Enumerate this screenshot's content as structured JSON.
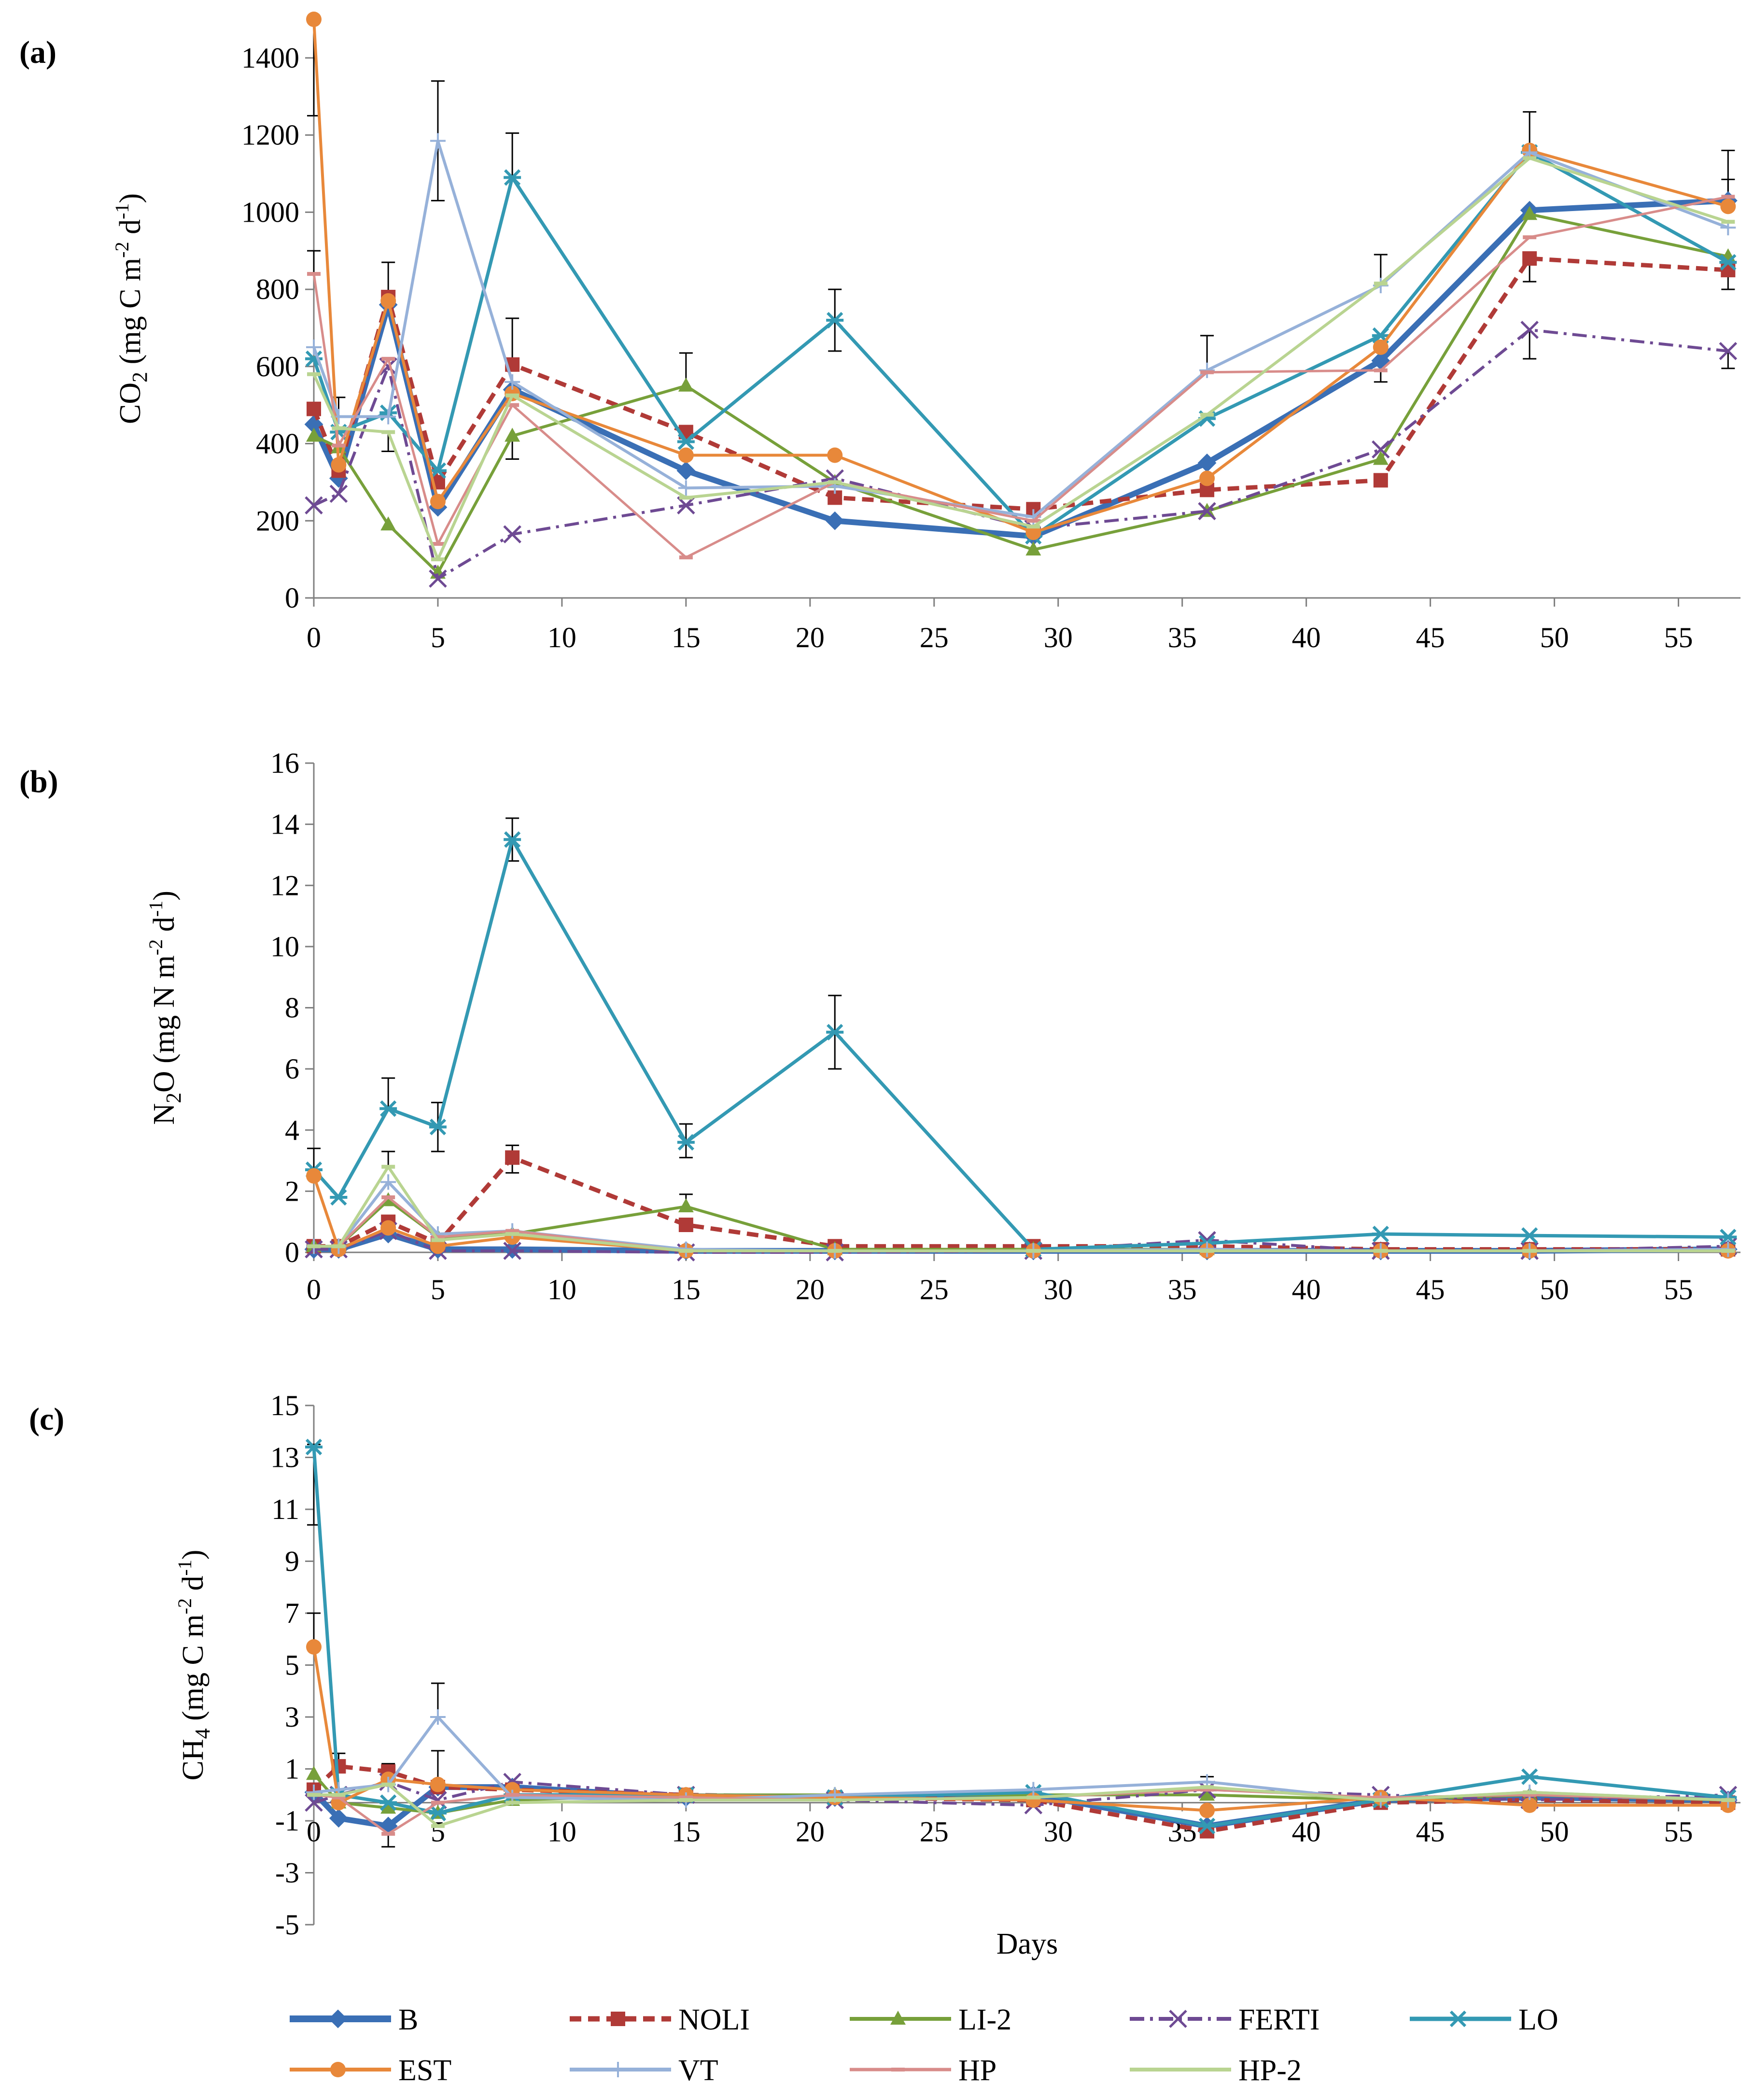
{
  "colors": {
    "B": "#3a6fb5",
    "NOLI": "#b03a37",
    "LI-2": "#77a03a",
    "FERTI": "#6e4a93",
    "LO": "#3399b3",
    "EST": "#e8883a",
    "VT": "#96b1d9",
    "HP": "#d88c8a",
    "HP-2": "#b9d491"
  },
  "legend": [
    "B",
    "NOLI",
    "LI-2",
    "FERTI",
    "LO",
    "EST",
    "VT",
    "HP",
    "HP-2"
  ],
  "chart_data": [
    {
      "type": "line",
      "panel": "(a)",
      "ylabel_main": "CO",
      "ylabel_sub": "2",
      "ylabel_rest": " (mg C  m",
      "ylabel_sup1": "-2",
      "ylabel_mid": " d",
      "ylabel_sup2": "-1",
      "ylabel_end": ")",
      "xlabel": "",
      "xlim": [
        0,
        57.5
      ],
      "ylim": [
        0,
        1500
      ],
      "xticks": [
        0,
        5,
        10,
        15,
        20,
        25,
        30,
        35,
        40,
        45,
        50,
        55
      ],
      "yticks": [
        0,
        200,
        400,
        600,
        800,
        1000,
        1200,
        1400
      ],
      "x": [
        0,
        1,
        3,
        5,
        8,
        15,
        21,
        29,
        36,
        43,
        49,
        57
      ],
      "series": [
        {
          "name": "B",
          "values": [
            450,
            310,
            760,
            235,
            540,
            330,
            200,
            160,
            350,
            615,
            1005,
            1030
          ]
        },
        {
          "name": "NOLI",
          "values": [
            490,
            330,
            780,
            300,
            605,
            430,
            260,
            230,
            280,
            305,
            880,
            850
          ]
        },
        {
          "name": "LI-2",
          "values": [
            420,
            390,
            190,
            65,
            420,
            550,
            300,
            125,
            225,
            360,
            995,
            885
          ]
        },
        {
          "name": "FERTI",
          "values": [
            240,
            270,
            600,
            50,
            165,
            240,
            310,
            180,
            225,
            385,
            695,
            640
          ]
        },
        {
          "name": "LO",
          "values": [
            620,
            430,
            480,
            330,
            1090,
            405,
            720,
            160,
            465,
            680,
            1155,
            870
          ]
        },
        {
          "name": "EST",
          "values": [
            1500,
            345,
            770,
            250,
            530,
            370,
            370,
            170,
            310,
            650,
            1160,
            1015
          ]
        },
        {
          "name": "VT",
          "values": [
            650,
            470,
            470,
            1185,
            560,
            285,
            290,
            210,
            590,
            810,
            1155,
            960
          ]
        },
        {
          "name": "HP",
          "values": [
            840,
            395,
            620,
            140,
            500,
            105,
            300,
            200,
            585,
            590,
            935,
            1040
          ]
        },
        {
          "name": "HP-2",
          "values": [
            580,
            440,
            430,
            100,
            525,
            260,
            300,
            185,
            475,
            815,
            1140,
            975
          ]
        }
      ],
      "error_bars": [
        {
          "x": 0,
          "y": 900
        },
        {
          "x": 0,
          "y": 1250
        },
        {
          "x": 1,
          "y": 520
        },
        {
          "x": 3,
          "y": 870
        },
        {
          "x": 3,
          "y": 380
        },
        {
          "x": 5,
          "y": 1340
        },
        {
          "x": 5,
          "y": 1030
        },
        {
          "x": 8,
          "y": 1205
        },
        {
          "x": 8,
          "y": 725
        },
        {
          "x": 8,
          "y": 360
        },
        {
          "x": 15,
          "y": 635
        },
        {
          "x": 21,
          "y": 800
        },
        {
          "x": 21,
          "y": 640
        },
        {
          "x": 36,
          "y": 680
        },
        {
          "x": 43,
          "y": 890
        },
        {
          "x": 43,
          "y": 560
        },
        {
          "x": 49,
          "y": 1260
        },
        {
          "x": 49,
          "y": 820
        },
        {
          "x": 49,
          "y": 620
        },
        {
          "x": 57,
          "y": 1160
        },
        {
          "x": 57,
          "y": 1085
        },
        {
          "x": 57,
          "y": 800
        },
        {
          "x": 57,
          "y": 595
        }
      ]
    },
    {
      "type": "line",
      "panel": "(b)",
      "ylabel_main": "N",
      "ylabel_sub": "2",
      "ylabel_rest": "O (mg N m",
      "ylabel_sup1": "-2",
      "ylabel_mid": " d",
      "ylabel_sup2": "-1",
      "ylabel_end": ")",
      "xlabel": "",
      "xlim": [
        0,
        57.5
      ],
      "ylim": [
        0,
        16
      ],
      "xticks": [
        0,
        5,
        10,
        15,
        20,
        25,
        30,
        35,
        40,
        45,
        50,
        55
      ],
      "yticks": [
        0,
        2,
        4,
        6,
        8,
        10,
        12,
        14,
        16
      ],
      "x": [
        0,
        1,
        3,
        5,
        8,
        15,
        21,
        29,
        36,
        43,
        49,
        57
      ],
      "series": [
        {
          "name": "B",
          "values": [
            0.1,
            0.1,
            0.6,
            0.1,
            0.1,
            0.05,
            0.05,
            0.05,
            0.05,
            0.05,
            0.05,
            0.1
          ]
        },
        {
          "name": "NOLI",
          "values": [
            0.2,
            0.2,
            1.0,
            0.3,
            3.1,
            0.9,
            0.2,
            0.2,
            0.2,
            0.1,
            0.1,
            0.1
          ]
        },
        {
          "name": "LI-2",
          "values": [
            0.2,
            0.2,
            1.7,
            0.5,
            0.6,
            1.5,
            0.1,
            0.1,
            0.1,
            0.05,
            0.05,
            0.1
          ]
        },
        {
          "name": "FERTI",
          "values": [
            0.1,
            0.1,
            0.7,
            0.05,
            0.05,
            0.0,
            0.0,
            0.05,
            0.4,
            0.05,
            0.05,
            0.2
          ]
        },
        {
          "name": "LO",
          "values": [
            2.7,
            1.8,
            4.7,
            4.1,
            13.5,
            3.6,
            7.2,
            0.1,
            0.3,
            0.6,
            0.55,
            0.5
          ]
        },
        {
          "name": "EST",
          "values": [
            2.5,
            0.1,
            0.8,
            0.2,
            0.5,
            0.05,
            0.05,
            0.05,
            0.05,
            0.05,
            0.05,
            0.05
          ]
        },
        {
          "name": "VT",
          "values": [
            0.2,
            0.2,
            2.3,
            0.6,
            0.7,
            0.1,
            0.05,
            0.05,
            0.1,
            0.05,
            0.05,
            0.1
          ]
        },
        {
          "name": "HP",
          "values": [
            0.2,
            0.2,
            1.8,
            0.5,
            0.7,
            0.05,
            0.05,
            0.05,
            0.05,
            0.05,
            0.05,
            0.05
          ]
        },
        {
          "name": "HP-2",
          "values": [
            0.2,
            0.2,
            2.8,
            0.4,
            0.6,
            0.05,
            0.05,
            0.05,
            0.05,
            0.05,
            0.05,
            0.05
          ]
        }
      ],
      "error_bars": [
        {
          "x": 0,
          "y": 3.4
        },
        {
          "x": 3,
          "y": 5.7
        },
        {
          "x": 3,
          "y": 3.3
        },
        {
          "x": 5,
          "y": 4.9
        },
        {
          "x": 5,
          "y": 3.3
        },
        {
          "x": 8,
          "y": 14.2
        },
        {
          "x": 8,
          "y": 12.8
        },
        {
          "x": 8,
          "y": 3.5
        },
        {
          "x": 8,
          "y": 2.6
        },
        {
          "x": 15,
          "y": 4.2
        },
        {
          "x": 15,
          "y": 3.1
        },
        {
          "x": 15,
          "y": 1.9
        },
        {
          "x": 21,
          "y": 8.4
        },
        {
          "x": 21,
          "y": 6.0
        }
      ]
    },
    {
      "type": "line",
      "panel": "(c)",
      "ylabel_main": "CH",
      "ylabel_sub": "4",
      "ylabel_rest": " (mg C m",
      "ylabel_sup1": "-2",
      "ylabel_mid": " d",
      "ylabel_sup2": "-1",
      "ylabel_end": ")",
      "xlabel": "Days",
      "xlim": [
        0,
        57.5
      ],
      "ylim": [
        -5,
        15
      ],
      "xticks": [
        0,
        5,
        10,
        15,
        20,
        25,
        30,
        35,
        40,
        45,
        50,
        55
      ],
      "yticks": [
        -5,
        -3,
        -1,
        1,
        3,
        5,
        7,
        9,
        11,
        13,
        15
      ],
      "x": [
        0,
        1,
        3,
        5,
        8,
        15,
        21,
        29,
        36,
        43,
        49,
        57
      ],
      "series": [
        {
          "name": "B",
          "values": [
            0.1,
            -0.9,
            -1.2,
            0.3,
            0.3,
            -0.1,
            -0.1,
            0.0,
            -1.2,
            -0.2,
            -0.1,
            -0.2
          ]
        },
        {
          "name": "NOLI",
          "values": [
            0.2,
            1.1,
            0.9,
            0.3,
            0.2,
            0.0,
            -0.1,
            -0.2,
            -1.4,
            -0.3,
            -0.2,
            -0.3
          ]
        },
        {
          "name": "LI-2",
          "values": [
            0.8,
            -0.3,
            -0.5,
            -0.7,
            -0.2,
            0.0,
            0.0,
            0.0,
            0.0,
            -0.2,
            0.0,
            -0.2
          ]
        },
        {
          "name": "FERTI",
          "values": [
            -0.3,
            0.0,
            0.5,
            -0.2,
            0.5,
            0.0,
            -0.2,
            -0.4,
            0.2,
            0.0,
            -0.2,
            0.0
          ]
        },
        {
          "name": "LO",
          "values": [
            13.4,
            0.0,
            -0.3,
            -0.7,
            0.0,
            0.0,
            -0.1,
            0.1,
            -1.2,
            -0.2,
            0.7,
            -0.1
          ]
        },
        {
          "name": "EST",
          "values": [
            5.7,
            -0.3,
            0.6,
            0.4,
            0.2,
            0.0,
            -0.1,
            -0.2,
            -0.6,
            -0.1,
            -0.4,
            -0.4
          ]
        },
        {
          "name": "VT",
          "values": [
            0.1,
            0.2,
            0.4,
            3.0,
            -0.1,
            -0.2,
            0.0,
            0.2,
            0.5,
            -0.2,
            0.1,
            -0.2
          ]
        },
        {
          "name": "HP",
          "values": [
            0.0,
            -0.1,
            -1.5,
            -0.3,
            0.0,
            -0.1,
            -0.2,
            -0.1,
            0.2,
            -0.1,
            0.0,
            -0.2
          ]
        },
        {
          "name": "HP-2",
          "values": [
            0.0,
            0.0,
            0.4,
            -1.2,
            -0.3,
            -0.2,
            -0.2,
            -0.1,
            0.3,
            -0.2,
            0.1,
            -0.2
          ]
        }
      ],
      "error_bars": [
        {
          "x": 0,
          "y": 13.5
        },
        {
          "x": 0,
          "y": 10.4
        },
        {
          "x": 0,
          "y": 7.0
        },
        {
          "x": 1,
          "y": 1.6
        },
        {
          "x": 3,
          "y": 1.2
        },
        {
          "x": 3,
          "y": -2.0
        },
        {
          "x": 5,
          "y": 4.3
        },
        {
          "x": 5,
          "y": 1.7
        },
        {
          "x": 36,
          "y": 0.7
        },
        {
          "x": 36,
          "y": -1.6
        }
      ]
    }
  ]
}
